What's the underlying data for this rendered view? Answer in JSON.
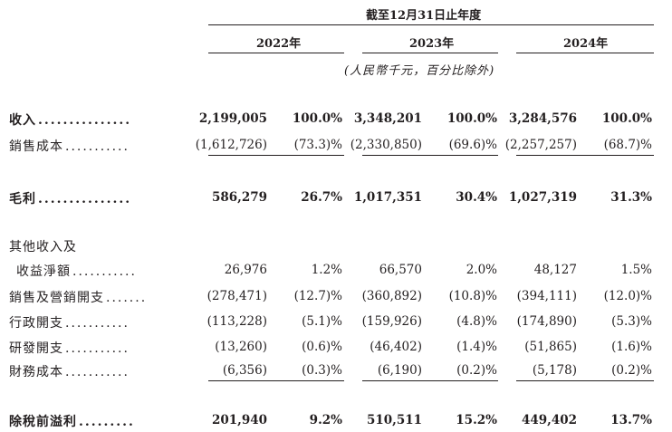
{
  "header": {
    "period": "截至12月31日止年度",
    "years": [
      "2022年",
      "2023年",
      "2024年"
    ],
    "unit_note": "(人民幣千元，百分比除外)"
  },
  "rows": [
    {
      "label": "收入",
      "dots": "...............",
      "bold": true,
      "v": [
        "2,199,005",
        "100.0%",
        "3,348,201",
        "100.0%",
        "3,284,576",
        "100.0%"
      ]
    },
    {
      "label": "銷售成本",
      "dots": "...........",
      "bold": false,
      "v": [
        "(1,612,726)",
        "(73.3)%",
        "(2,330,850)",
        "(69.6)%",
        "(2,257,257)",
        "(68.7)%"
      ]
    },
    {
      "label": "毛利",
      "dots": "...............",
      "bold": true,
      "v": [
        "586,279",
        "26.7%",
        "1,017,351",
        "30.4%",
        "1,027,319",
        "31.3%"
      ]
    },
    {
      "label": "其他收入及",
      "dots": "",
      "bold": false,
      "v": [
        "",
        "",
        "",
        "",
        "",
        ""
      ]
    },
    {
      "label": "收益淨額",
      "dots": "...........",
      "bold": false,
      "v": [
        "26,976",
        "1.2%",
        "66,570",
        "2.0%",
        "48,127",
        "1.5%"
      ]
    },
    {
      "label": "銷售及營銷開支",
      "dots": ".......",
      "bold": false,
      "v": [
        "(278,471)",
        "(12.7)%",
        "(360,892)",
        "(10.8)%",
        "(394,111)",
        "(12.0)%"
      ]
    },
    {
      "label": "行政開支",
      "dots": "...........",
      "bold": false,
      "v": [
        "(113,228)",
        "(5.1)%",
        "(159,926)",
        "(4.8)%",
        "(174,890)",
        "(5.3)%"
      ]
    },
    {
      "label": "研發開支",
      "dots": "...........",
      "bold": false,
      "v": [
        "(13,260)",
        "(0.6)%",
        "(46,402)",
        "(1.4)%",
        "(51,865)",
        "(1.6)%"
      ]
    },
    {
      "label": "財務成本",
      "dots": "...........",
      "bold": false,
      "v": [
        "(6,356)",
        "(0.3)%",
        "(6,190)",
        "(0.2)%",
        "(5,178)",
        "(0.2)%"
      ]
    },
    {
      "label": "除稅前溢利",
      "dots": ".........",
      "bold": true,
      "v": [
        "201,940",
        "9.2%",
        "510,511",
        "15.2%",
        "449,402",
        "13.7%"
      ]
    }
  ]
}
